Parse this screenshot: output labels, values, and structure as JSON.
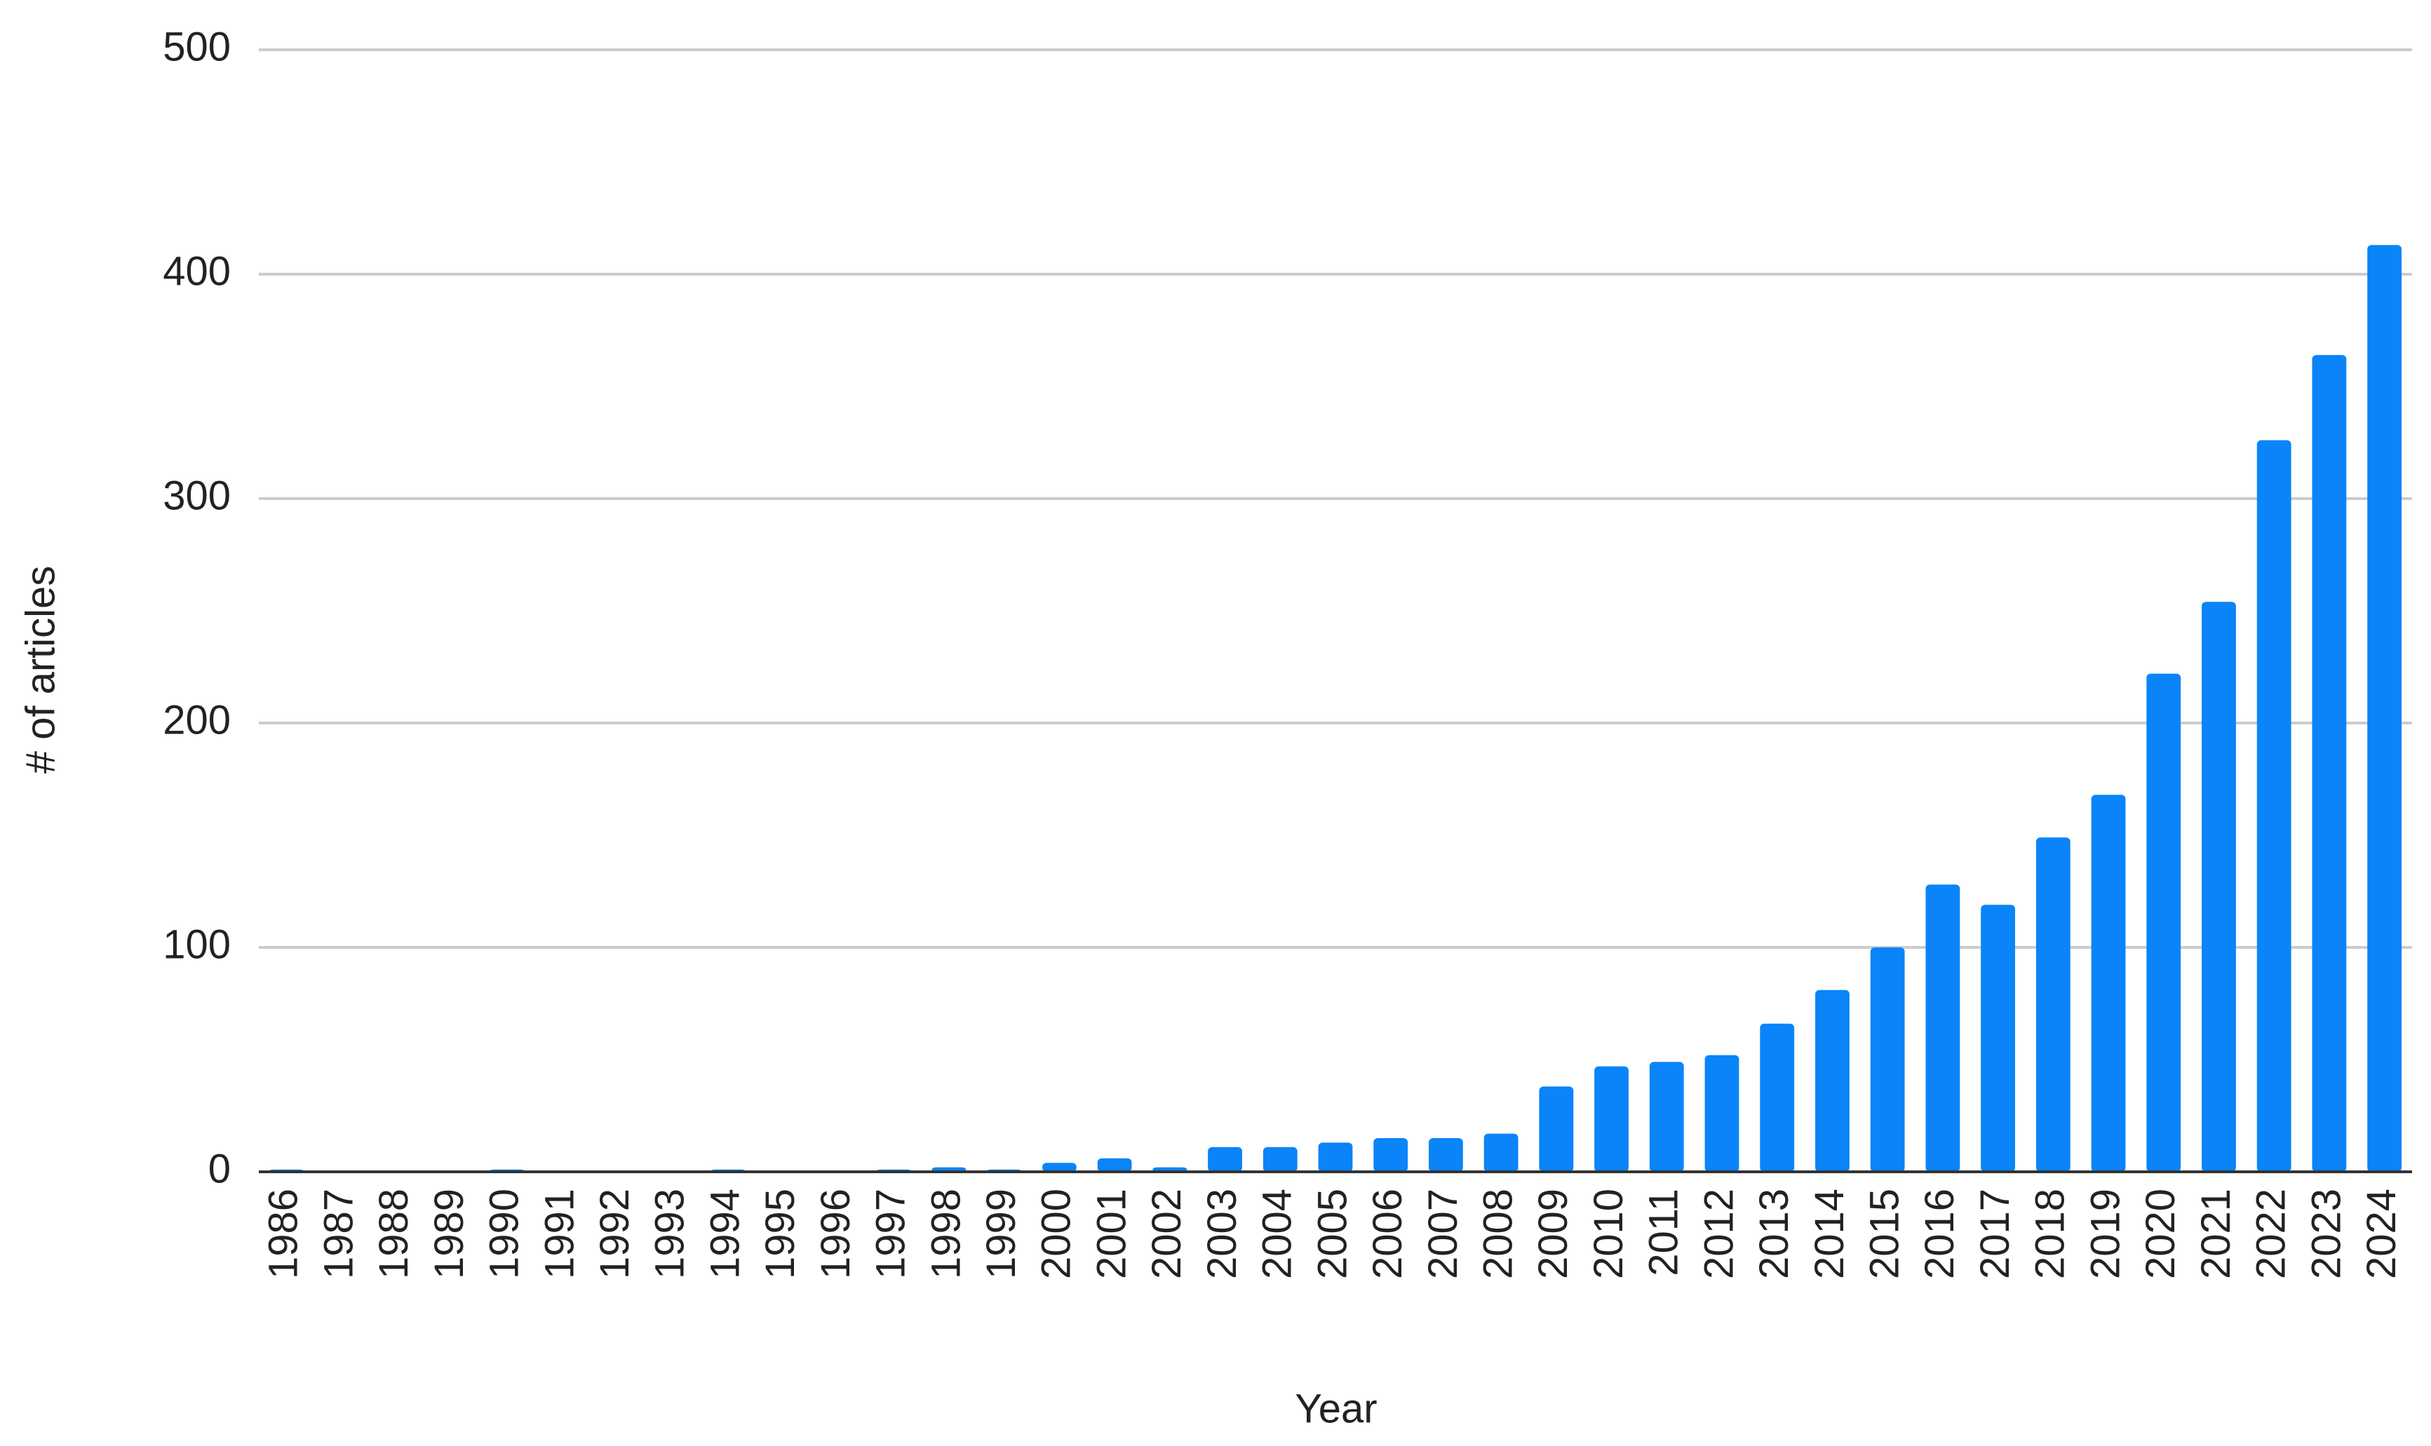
{
  "chart_data": {
    "type": "bar",
    "x_label": "Year",
    "y_label": "# of articles",
    "categories": [
      "1986",
      "1987",
      "1988",
      "1989",
      "1990",
      "1991",
      "1992",
      "1993",
      "1994",
      "1995",
      "1996",
      "1997",
      "1998",
      "1999",
      "2000",
      "2001",
      "2002",
      "2003",
      "2004",
      "2005",
      "2006",
      "2007",
      "2008",
      "2009",
      "2010",
      "2011",
      "2012",
      "2013",
      "2014",
      "2015",
      "2016",
      "2017",
      "2018",
      "2019",
      "2020",
      "2021",
      "2022",
      "2023",
      "2024"
    ],
    "values": [
      1,
      0,
      0,
      0,
      1,
      0,
      0,
      0,
      1,
      0,
      0,
      1,
      2,
      1,
      4,
      6,
      2,
      11,
      11,
      13,
      15,
      15,
      17,
      38,
      47,
      49,
      52,
      66,
      81,
      100,
      128,
      119,
      149,
      168,
      222,
      254,
      326,
      364,
      413
    ],
    "color": "#0a84f8",
    "ylim": [
      0,
      500
    ],
    "yticks": [
      0,
      100,
      200,
      300,
      400,
      500
    ],
    "grid": true
  }
}
